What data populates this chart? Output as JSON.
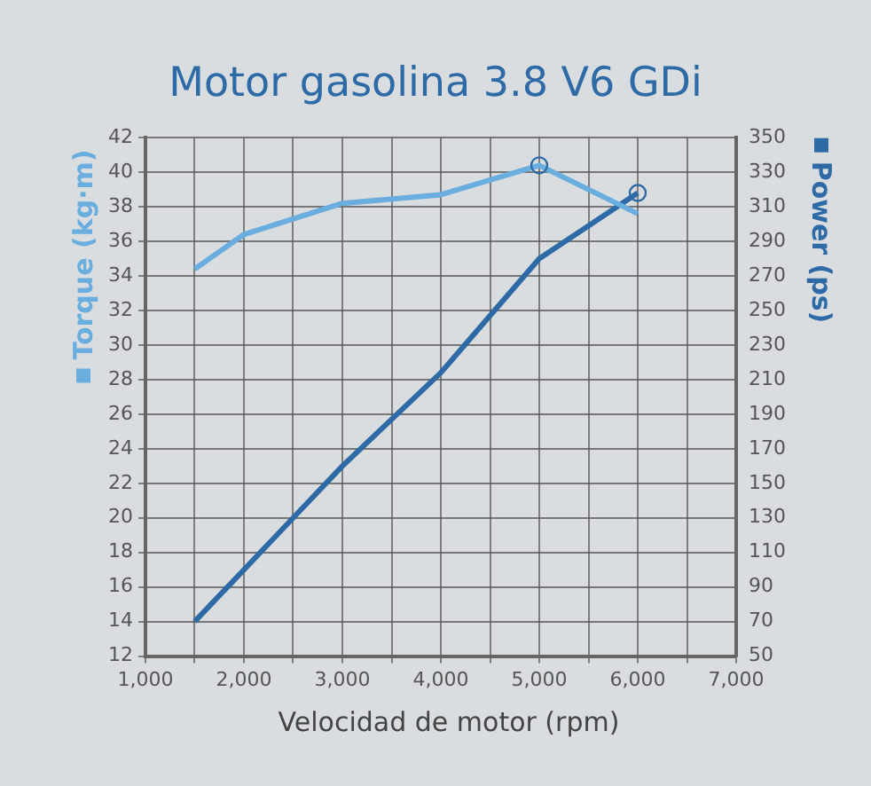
{
  "chart_data": {
    "type": "line",
    "title": "Motor gasolina 3.8 V6 GDi",
    "xlabel": "Velocidad de motor (rpm)",
    "ylabel": "Torque (kg·m)",
    "y2label": "Power (ps)",
    "xlim": [
      1000,
      7000
    ],
    "xticks": [
      {
        "value": 1000,
        "label": "1,000"
      },
      {
        "value": 1500,
        "label": null
      },
      {
        "value": 2000,
        "label": "2,000"
      },
      {
        "value": 2500,
        "label": null
      },
      {
        "value": 3000,
        "label": "3,000"
      },
      {
        "value": 3500,
        "label": null
      },
      {
        "value": 4000,
        "label": "4,000"
      },
      {
        "value": 4500,
        "label": null
      },
      {
        "value": 5000,
        "label": "5,000"
      },
      {
        "value": 5500,
        "label": null
      },
      {
        "value": 6000,
        "label": "6,000"
      },
      {
        "value": 6500,
        "label": null
      },
      {
        "value": 7000,
        "label": "7,000"
      }
    ],
    "ylim": [
      12,
      42
    ],
    "yticks": [
      12,
      14,
      16,
      18,
      20,
      22,
      24,
      26,
      28,
      30,
      32,
      34,
      36,
      38,
      40,
      42
    ],
    "y2lim": [
      50,
      350
    ],
    "y2ticks": [
      50,
      70,
      90,
      110,
      130,
      150,
      170,
      190,
      210,
      230,
      250,
      270,
      290,
      310,
      330,
      350
    ],
    "grid": true,
    "marker": "none",
    "line_style": "solid",
    "series": [
      {
        "color": "#6aaee0",
        "x": [
          1500,
          2000,
          3000,
          4000,
          5000,
          6000
        ],
        "values": [
          34.4,
          36.4,
          38.2,
          38.7,
          40.4,
          37.6
        ]
      },
      {
        "color": "#2e6aa6",
        "axis": "y2",
        "x": [
          1500,
          2500,
          3000,
          4000,
          5000,
          6000
        ],
        "values": [
          70,
          130,
          160,
          214,
          280,
          318
        ]
      },
      {
        "type": "scatter",
        "marker": "circle",
        "color": "#2e6aa6",
        "x": [
          5000
        ],
        "values": [
          40.4
        ]
      },
      {
        "type": "scatter",
        "marker": "circle",
        "color": "#2e6aa6",
        "axis": "y2",
        "x": [
          6000
        ],
        "values": [
          318
        ]
      }
    ]
  }
}
